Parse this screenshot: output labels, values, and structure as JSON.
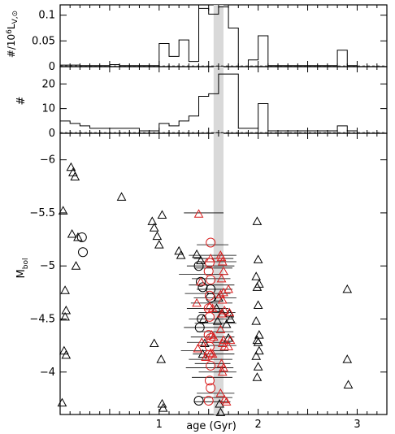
{
  "chart_data": [
    {
      "panel": "top",
      "type": "histogram",
      "ylabel": "#/10⁶L_V,⊙",
      "ylabel_parts": {
        "prefix": "#/10",
        "power": "6",
        "L": "L",
        "sub": "V,⊙"
      },
      "xlim": [
        0,
        3.3
      ],
      "ylim": [
        0,
        0.12
      ],
      "yticks": [
        0,
        0.05,
        0.1
      ],
      "yticklabels": [
        "0",
        "0.05",
        "0.1"
      ],
      "bin_edges": [
        0,
        0.1,
        0.2,
        0.3,
        0.4,
        0.5,
        0.6,
        0.7,
        0.8,
        0.9,
        1.0,
        1.1,
        1.2,
        1.3,
        1.4,
        1.5,
        1.6,
        1.7,
        1.8,
        1.9,
        2.0,
        2.1,
        2.2,
        2.3,
        2.4,
        2.5,
        2.6,
        2.7,
        2.8,
        2.9,
        3.0
      ],
      "values": [
        0.003,
        0.003,
        0.002,
        0.002,
        0.002,
        0.004,
        0.002,
        0.002,
        0.002,
        0.002,
        0.045,
        0.02,
        0.052,
        0.01,
        0.113,
        0.102,
        0.116,
        0.075,
        0.0,
        0.013,
        0.06,
        0.002,
        0.002,
        0.002,
        0.002,
        0.002,
        0.002,
        0.002,
        0.032,
        0.002
      ],
      "highlight_band": [
        1.55,
        1.65
      ]
    },
    {
      "panel": "middle",
      "type": "histogram",
      "ylabel": "#",
      "xlim": [
        0,
        3.3
      ],
      "ylim": [
        0,
        27
      ],
      "yticks": [
        0,
        10,
        20
      ],
      "yticklabels": [
        "0",
        "10",
        "20"
      ],
      "bin_edges": [
        0,
        0.1,
        0.2,
        0.3,
        0.4,
        0.5,
        0.6,
        0.7,
        0.8,
        0.9,
        1.0,
        1.1,
        1.2,
        1.3,
        1.4,
        1.5,
        1.6,
        1.7,
        1.8,
        1.9,
        2.0,
        2.1,
        2.2,
        2.3,
        2.4,
        2.5,
        2.6,
        2.7,
        2.8,
        2.9,
        3.0
      ],
      "values": [
        5,
        4,
        3,
        2,
        2,
        2,
        2,
        2,
        1,
        1,
        4,
        3,
        5,
        7,
        15,
        16,
        24,
        24,
        2,
        2,
        12,
        1,
        1,
        1,
        1,
        1,
        1,
        1,
        3,
        1
      ],
      "highlight_band": [
        1.55,
        1.65
      ]
    },
    {
      "panel": "bottom",
      "type": "scatter",
      "xlabel": "age (Gyr)",
      "ylabel": "M",
      "ylabel_sub": "bol",
      "xlim": [
        0,
        3.3
      ],
      "ylim": [
        -3.6,
        -6.25
      ],
      "xticks": [
        1,
        2,
        3
      ],
      "xticklabels": [
        "1",
        "2",
        "3"
      ],
      "yticks": [
        -6,
        -5.5,
        -5,
        -4.5,
        -4
      ],
      "yticklabels": [
        "−6",
        "−5.5",
        "−5",
        "−4.5",
        "−4"
      ],
      "highlight_band": [
        1.55,
        1.65
      ],
      "series": [
        {
          "marker": "triangle",
          "color": "#000000",
          "points": [
            [
              0.03,
              -5.52
            ],
            [
              0.05,
              -4.77
            ],
            [
              0.06,
              -4.58
            ],
            [
              0.05,
              -4.52
            ],
            [
              0.04,
              -4.2
            ],
            [
              0.06,
              -4.16
            ],
            [
              0.02,
              -3.71
            ],
            [
              0.11,
              -5.93
            ],
            [
              0.13,
              -5.88
            ],
            [
              0.15,
              -5.84
            ],
            [
              0.12,
              -5.3
            ],
            [
              0.18,
              -5.27
            ],
            [
              0.16,
              -5.0
            ],
            [
              0.62,
              -5.65
            ],
            [
              0.93,
              -5.42
            ],
            [
              0.95,
              -5.36
            ],
            [
              0.98,
              -5.28
            ],
            [
              1.0,
              -5.2
            ],
            [
              1.03,
              -5.48
            ],
            [
              0.95,
              -4.27
            ],
            [
              1.02,
              -4.12
            ],
            [
              1.03,
              -3.7
            ],
            [
              1.04,
              -3.66
            ],
            [
              1.2,
              -5.14
            ],
            [
              1.22,
              -5.1
            ],
            [
              1.38,
              -5.11
            ],
            [
              1.42,
              -5.05
            ],
            [
              1.45,
              -4.5
            ],
            [
              1.46,
              -4.27
            ],
            [
              1.44,
              -4.17
            ],
            [
              1.58,
              -4.6
            ],
            [
              1.6,
              -4.7
            ],
            [
              1.59,
              -4.48
            ],
            [
              1.61,
              -3.7
            ],
            [
              1.62,
              -3.62
            ],
            [
              1.64,
              -4.55
            ],
            [
              1.68,
              -4.45
            ],
            [
              1.7,
              -4.32
            ],
            [
              1.71,
              -4.55
            ],
            [
              1.72,
              -4.5
            ],
            [
              1.99,
              -5.42
            ],
            [
              2.0,
              -5.06
            ],
            [
              1.98,
              -4.9
            ],
            [
              2.01,
              -4.83
            ],
            [
              1.99,
              -4.8
            ],
            [
              2.0,
              -4.63
            ],
            [
              1.98,
              -4.48
            ],
            [
              2.01,
              -4.35
            ],
            [
              1.99,
              -4.3
            ],
            [
              2.0,
              -4.28
            ],
            [
              2.01,
              -4.2
            ],
            [
              1.98,
              -4.15
            ],
            [
              2.0,
              -4.05
            ],
            [
              1.99,
              -3.95
            ],
            [
              2.9,
              -4.78
            ],
            [
              2.9,
              -4.12
            ],
            [
              2.91,
              -3.88
            ]
          ]
        },
        {
          "marker": "circle",
          "color": "#000000",
          "points": [
            [
              0.22,
              -5.27
            ],
            [
              0.23,
              -5.13
            ],
            [
              1.4,
              -5.0
            ],
            [
              1.42,
              -4.85
            ],
            [
              1.44,
              -4.8
            ],
            [
              1.43,
              -4.5
            ],
            [
              1.41,
              -4.42
            ],
            [
              1.4,
              -3.73
            ],
            [
              1.52,
              -4.78
            ],
            [
              1.52,
              -4.7
            ]
          ]
        },
        {
          "marker": "triangle",
          "color": "#d81e1e",
          "points": [
            [
              1.4,
              -5.49
            ],
            [
              1.42,
              -4.85
            ],
            [
              1.38,
              -4.65
            ],
            [
              1.43,
              -4.28
            ],
            [
              1.39,
              -4.22
            ],
            [
              1.47,
              -4.14
            ],
            [
              1.52,
              -5.07
            ],
            [
              1.54,
              -4.6
            ],
            [
              1.51,
              -4.62
            ],
            [
              1.53,
              -4.35
            ],
            [
              1.55,
              -4.33
            ],
            [
              1.52,
              -4.18
            ],
            [
              1.54,
              -4.17
            ],
            [
              1.62,
              -5.1
            ],
            [
              1.63,
              -5.08
            ],
            [
              1.64,
              -5.04
            ],
            [
              1.65,
              -4.95
            ],
            [
              1.63,
              -4.88
            ],
            [
              1.65,
              -4.75
            ],
            [
              1.62,
              -4.73
            ],
            [
              1.64,
              -4.68
            ],
            [
              1.66,
              -4.58
            ],
            [
              1.63,
              -4.55
            ],
            [
              1.62,
              -4.4
            ],
            [
              1.65,
              -4.3
            ],
            [
              1.64,
              -4.27
            ],
            [
              1.66,
              -4.24
            ],
            [
              1.63,
              -4.08
            ],
            [
              1.65,
              -4.04
            ],
            [
              1.64,
              -4.0
            ],
            [
              1.62,
              -3.8
            ],
            [
              1.66,
              -3.74
            ],
            [
              1.68,
              -3.72
            ],
            [
              1.7,
              -4.78
            ],
            [
              1.71,
              -4.56
            ],
            [
              1.72,
              -4.3
            ],
            [
              1.7,
              -4.24
            ]
          ]
        },
        {
          "marker": "circle",
          "color": "#d81e1e",
          "points": [
            [
              1.52,
              -5.22
            ],
            [
              1.51,
              -5.03
            ],
            [
              1.5,
              -4.95
            ],
            [
              1.52,
              -4.87
            ],
            [
              1.51,
              -4.72
            ],
            [
              1.5,
              -4.6
            ],
            [
              1.51,
              -4.52
            ],
            [
              1.5,
              -4.35
            ],
            [
              1.52,
              -4.32
            ],
            [
              1.51,
              -4.24
            ],
            [
              1.5,
              -4.16
            ],
            [
              1.52,
              -4.06
            ],
            [
              1.51,
              -3.92
            ],
            [
              1.52,
              -3.85
            ],
            [
              1.5,
              -3.73
            ]
          ]
        },
        {
          "marker": "errorbar",
          "color": "#000000",
          "points": [
            [
              1.25,
              1.65,
              -5.5
            ],
            [
              1.38,
              1.7,
              -5.2
            ],
            [
              1.3,
              1.78,
              -5.1
            ],
            [
              1.35,
              1.75,
              -5.07
            ],
            [
              1.4,
              1.78,
              -5.04
            ],
            [
              1.28,
              1.76,
              -5.0
            ],
            [
              1.36,
              1.74,
              -4.98
            ],
            [
              1.2,
              1.7,
              -4.92
            ],
            [
              1.33,
              1.72,
              -4.88
            ],
            [
              1.3,
              1.76,
              -4.82
            ],
            [
              1.38,
              1.74,
              -4.78
            ],
            [
              1.26,
              1.72,
              -4.74
            ],
            [
              1.35,
              1.78,
              -4.7
            ],
            [
              1.32,
              1.74,
              -4.65
            ],
            [
              1.28,
              1.7,
              -4.6
            ],
            [
              1.4,
              1.77,
              -4.56
            ],
            [
              1.3,
              1.74,
              -4.5
            ],
            [
              1.36,
              1.78,
              -4.46
            ],
            [
              1.25,
              1.7,
              -4.42
            ],
            [
              1.38,
              1.75,
              -4.38
            ],
            [
              1.32,
              1.76,
              -4.33
            ],
            [
              1.28,
              1.72,
              -4.28
            ],
            [
              1.4,
              1.78,
              -4.25
            ],
            [
              1.22,
              1.7,
              -4.2
            ],
            [
              1.34,
              1.76,
              -4.17
            ],
            [
              1.3,
              1.74,
              -4.12
            ],
            [
              1.36,
              1.72,
              -4.08
            ],
            [
              1.27,
              1.75,
              -4.04
            ],
            [
              1.4,
              1.78,
              -4.0
            ],
            [
              1.33,
              1.74,
              -3.95
            ],
            [
              1.38,
              1.76,
              -3.8
            ],
            [
              1.42,
              1.74,
              -3.76
            ],
            [
              1.35,
              1.72,
              -3.72
            ]
          ]
        }
      ]
    }
  ]
}
